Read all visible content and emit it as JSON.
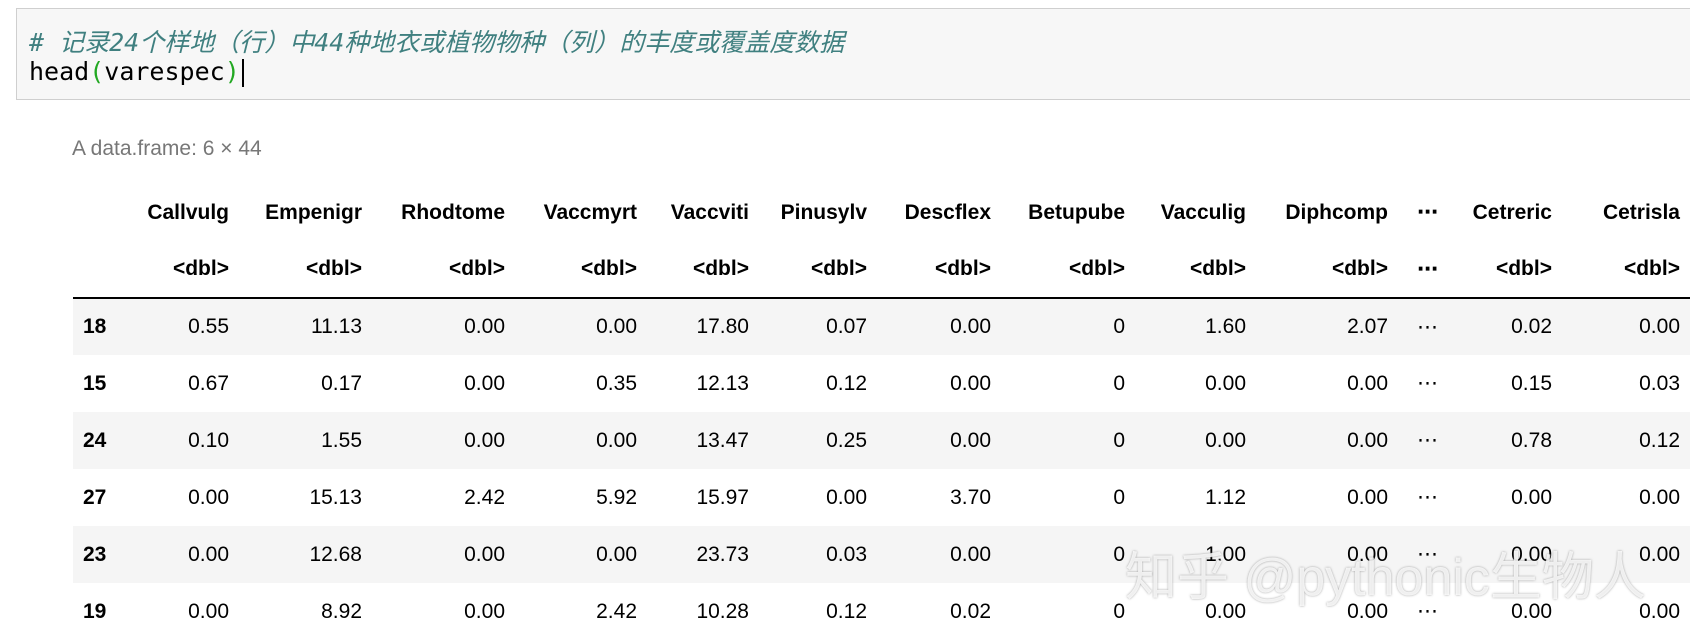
{
  "code_cell": {
    "comment": "# 记录24个样地（行）中44种地衣或植物物种（列）的丰度或覆盖度数据",
    "code_tokens": [
      "head",
      "(",
      "varespec",
      ")"
    ]
  },
  "output": {
    "caption": "A data.frame: 6 × 44",
    "columns": [
      "Callvulg",
      "Empenigr",
      "Rhodtome",
      "Vaccmyrt",
      "Vaccviti",
      "Pinusylv",
      "Descflex",
      "Betupube",
      "Vacculig",
      "Diphcomp",
      "⋯",
      "Cetreric",
      "Cetrisla"
    ],
    "types": [
      "<dbl>",
      "<dbl>",
      "<dbl>",
      "<dbl>",
      "<dbl>",
      "<dbl>",
      "<dbl>",
      "<dbl>",
      "<dbl>",
      "<dbl>",
      "⋯",
      "<dbl>",
      "<dbl>"
    ],
    "rows": [
      {
        "index": "18",
        "cells": [
          "0.55",
          "11.13",
          "0.00",
          "0.00",
          "17.80",
          "0.07",
          "0.00",
          "0",
          "1.60",
          "2.07",
          "⋯",
          "0.02",
          "0.00"
        ]
      },
      {
        "index": "15",
        "cells": [
          "0.67",
          "0.17",
          "0.00",
          "0.35",
          "12.13",
          "0.12",
          "0.00",
          "0",
          "0.00",
          "0.00",
          "⋯",
          "0.15",
          "0.03"
        ]
      },
      {
        "index": "24",
        "cells": [
          "0.10",
          "1.55",
          "0.00",
          "0.00",
          "13.47",
          "0.25",
          "0.00",
          "0",
          "0.00",
          "0.00",
          "⋯",
          "0.78",
          "0.12"
        ]
      },
      {
        "index": "27",
        "cells": [
          "0.00",
          "15.13",
          "2.42",
          "5.92",
          "15.97",
          "0.00",
          "3.70",
          "0",
          "1.12",
          "0.00",
          "⋯",
          "0.00",
          "0.00"
        ]
      },
      {
        "index": "23",
        "cells": [
          "0.00",
          "12.68",
          "0.00",
          "0.00",
          "23.73",
          "0.03",
          "0.00",
          "0",
          "1.00",
          "0.00",
          "⋯",
          "0.00",
          "0.00"
        ]
      },
      {
        "index": "19",
        "cells": [
          "0.00",
          "8.92",
          "0.00",
          "2.42",
          "10.28",
          "0.12",
          "0.02",
          "0",
          "0.00",
          "0.00",
          "⋯",
          "0.00",
          "0.00"
        ]
      }
    ]
  },
  "watermark": "知乎 @pythonic生物人"
}
